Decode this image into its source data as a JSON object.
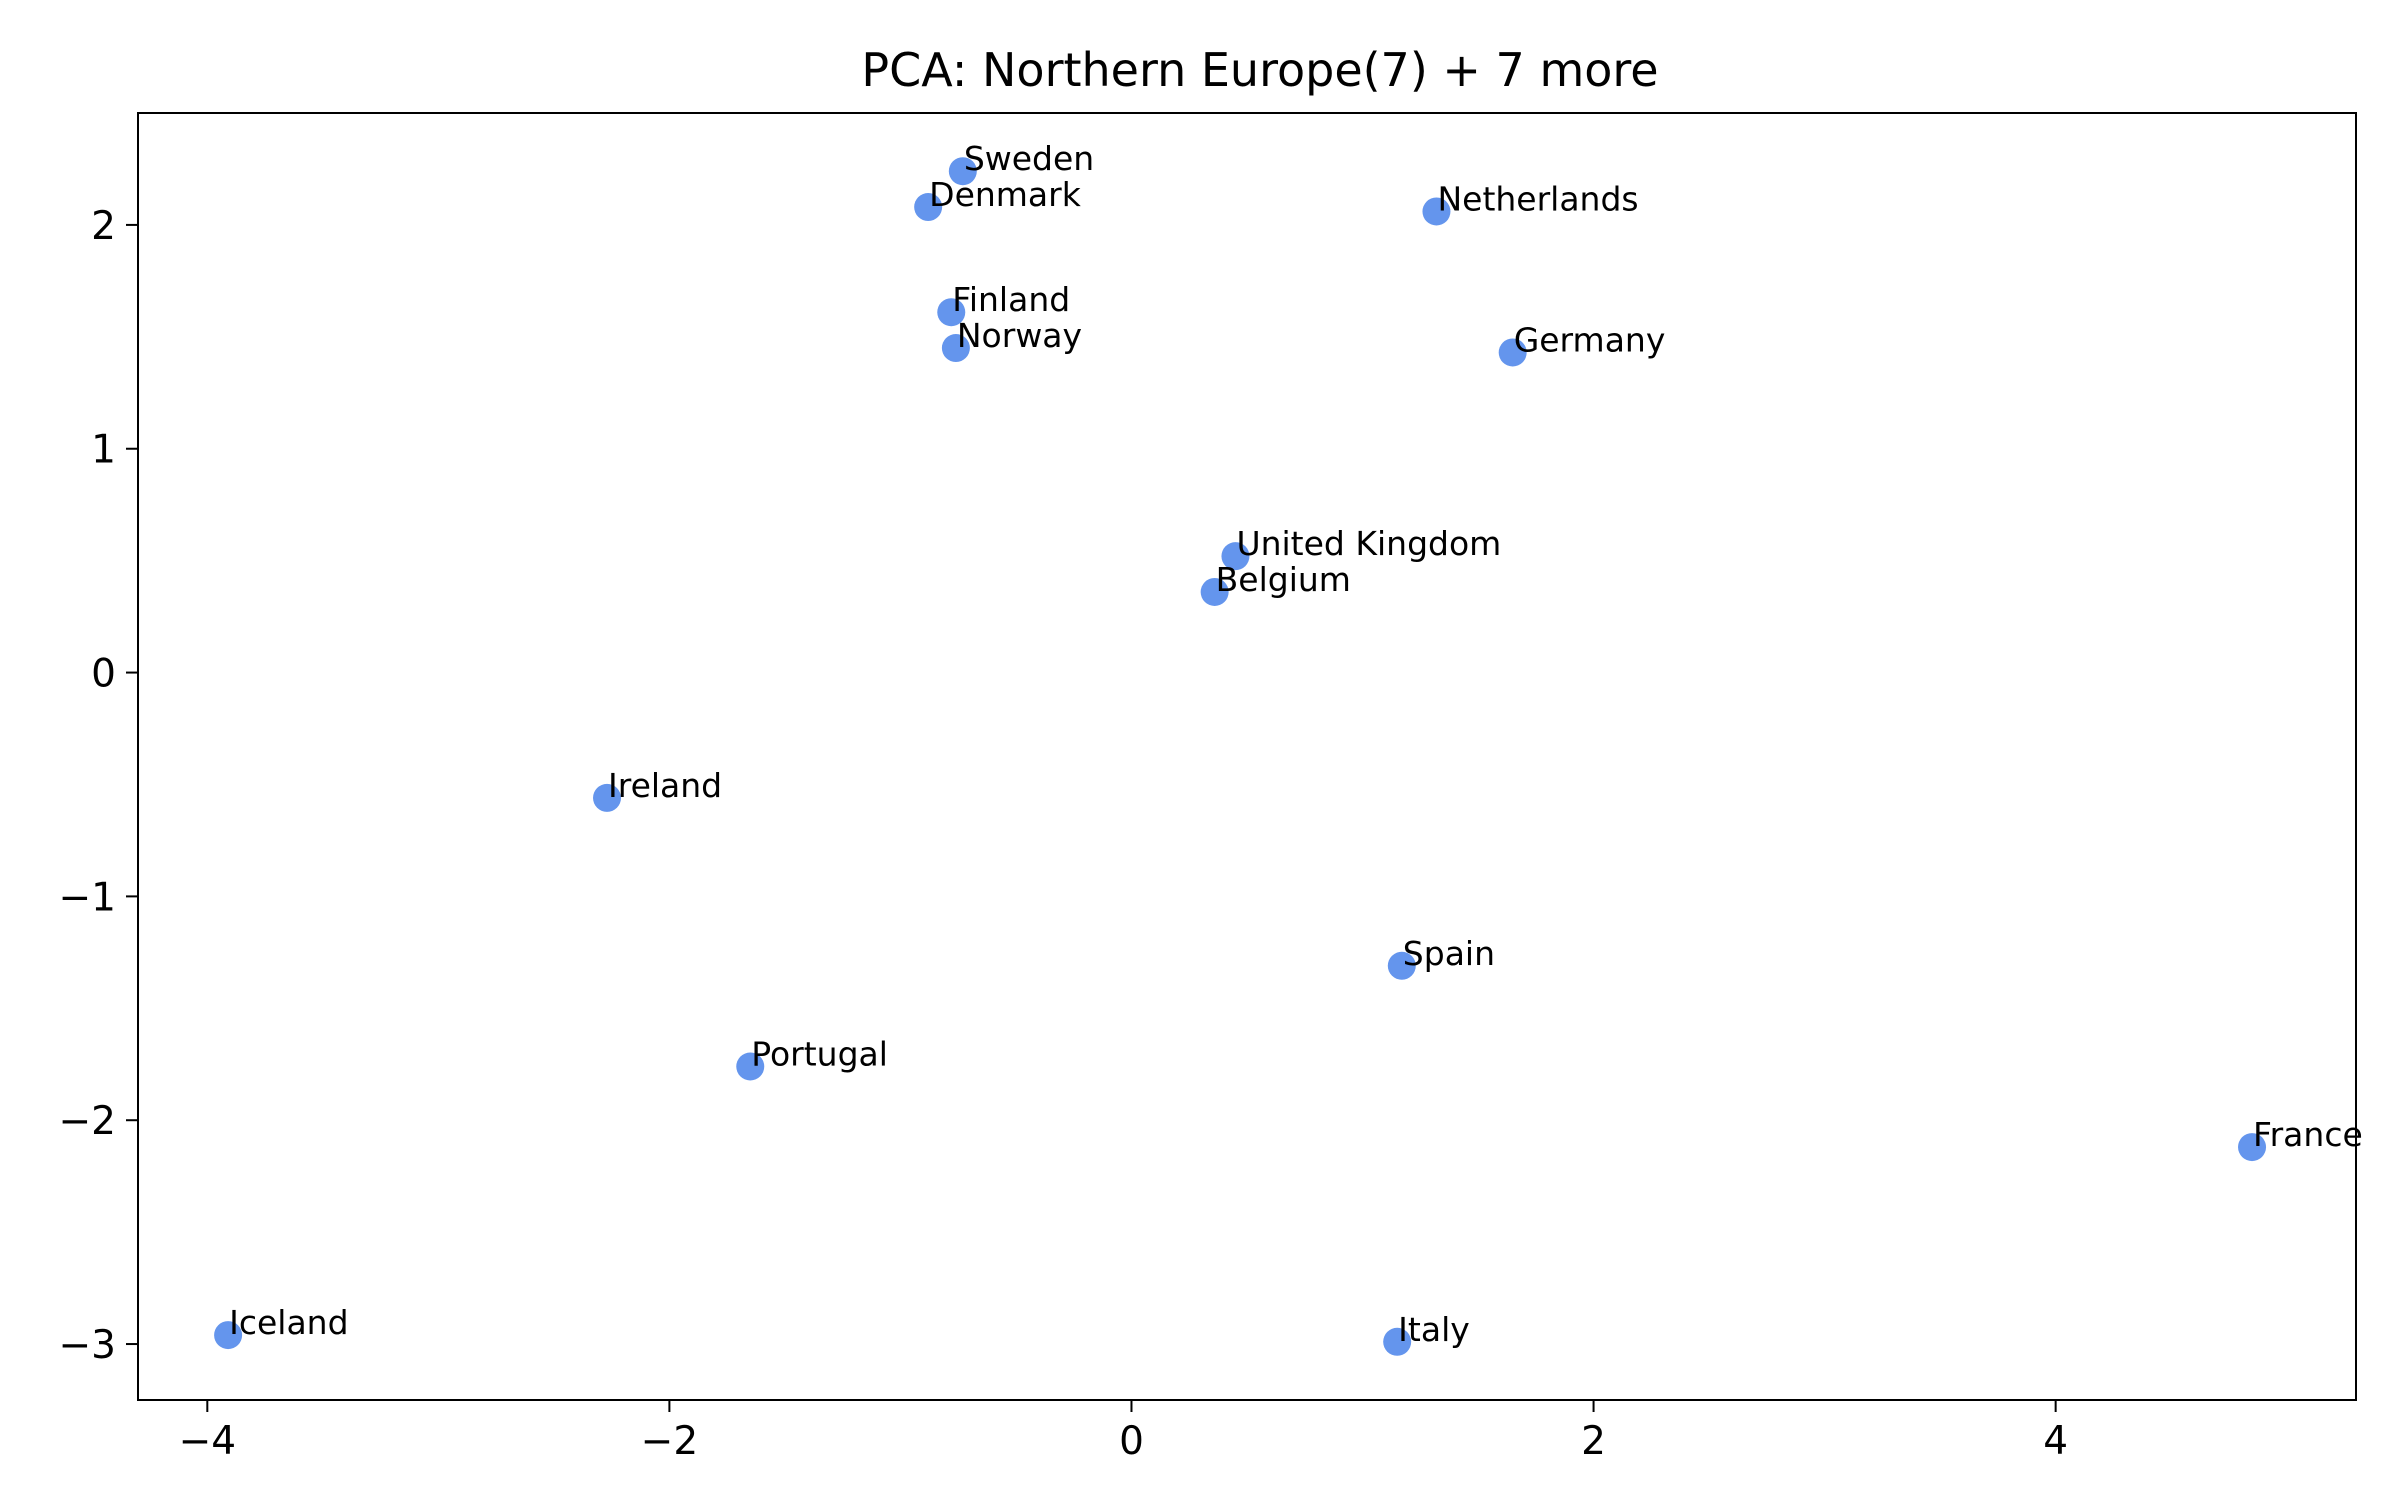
{
  "chart_data": {
    "type": "scatter",
    "title": "PCA: Northern Europe(7) + 7 more",
    "xlabel": "",
    "ylabel": "",
    "xlim": [
      -4.3,
      5.3
    ],
    "ylim": [
      -3.25,
      2.5
    ],
    "xticks": [
      -4,
      -2,
      0,
      2,
      4
    ],
    "xtick_labels": [
      "−4",
      "−2",
      "0",
      "2",
      "4"
    ],
    "yticks": [
      -3,
      -2,
      -1,
      0,
      1,
      2
    ],
    "ytick_labels": [
      "−3",
      "−2",
      "−1",
      "0",
      "1",
      "2"
    ],
    "grid": false,
    "point_color": "#6495ED",
    "points": [
      {
        "label": "Sweden",
        "x": -0.73,
        "y": 2.24
      },
      {
        "label": "Denmark",
        "x": -0.88,
        "y": 2.08
      },
      {
        "label": "Netherlands",
        "x": 1.32,
        "y": 2.06
      },
      {
        "label": "Finland",
        "x": -0.78,
        "y": 1.61
      },
      {
        "label": "Norway",
        "x": -0.76,
        "y": 1.45
      },
      {
        "label": "Germany",
        "x": 1.65,
        "y": 1.43
      },
      {
        "label": "United Kingdom",
        "x": 0.45,
        "y": 0.52
      },
      {
        "label": "Belgium",
        "x": 0.36,
        "y": 0.36
      },
      {
        "label": "Ireland",
        "x": -2.27,
        "y": -0.56
      },
      {
        "label": "Spain",
        "x": 1.17,
        "y": -1.31
      },
      {
        "label": "Portugal",
        "x": -1.65,
        "y": -1.76
      },
      {
        "label": "France",
        "x": 4.85,
        "y": -2.12
      },
      {
        "label": "Iceland",
        "x": -3.91,
        "y": -2.96
      },
      {
        "label": "Italy",
        "x": 1.15,
        "y": -2.99
      }
    ]
  }
}
